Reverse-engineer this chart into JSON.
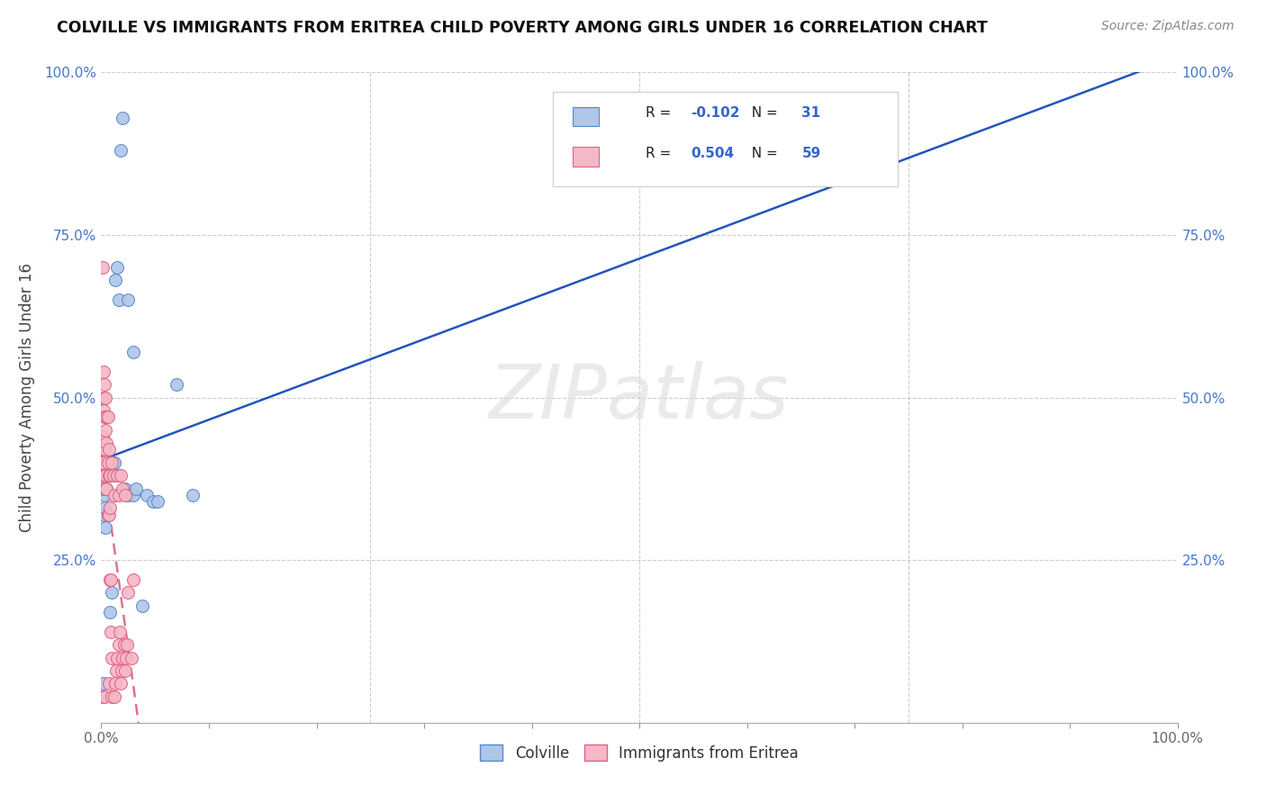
{
  "title": "COLVILLE VS IMMIGRANTS FROM ERITREA CHILD POVERTY AMONG GIRLS UNDER 16 CORRELATION CHART",
  "source": "Source: ZipAtlas.com",
  "ylabel": "Child Poverty Among Girls Under 16",
  "xlim": [
    0,
    1.0
  ],
  "ylim": [
    0,
    1.0
  ],
  "colville_color": "#aec6e8",
  "eritrea_color": "#f4b8c8",
  "colville_edge": "#5588cc",
  "eritrea_edge": "#e06080",
  "trendline_colville_color": "#2255bb",
  "trendline_eritrea_color": "#e07090",
  "R_colville": -0.102,
  "N_colville": 31,
  "R_eritrea": 0.504,
  "N_eritrea": 59,
  "legend_label_colville": "Colville",
  "legend_label_eritrea": "Immigrants from Eritrea",
  "watermark_text": "ZIPatlas",
  "colville_x": [
    0.002,
    0.002,
    0.003,
    0.003,
    0.003,
    0.004,
    0.004,
    0.005,
    0.006,
    0.007,
    0.008,
    0.009,
    0.01,
    0.012,
    0.013,
    0.015,
    0.016,
    0.018,
    0.02,
    0.022,
    0.025,
    0.025,
    0.03,
    0.03,
    0.032,
    0.038,
    0.042,
    0.048,
    0.052,
    0.07,
    0.085
  ],
  "colville_y": [
    0.06,
    0.32,
    0.33,
    0.35,
    0.38,
    0.3,
    0.36,
    0.36,
    0.38,
    0.38,
    0.17,
    0.38,
    0.2,
    0.4,
    0.68,
    0.7,
    0.65,
    0.88,
    0.93,
    0.36,
    0.35,
    0.65,
    0.57,
    0.35,
    0.36,
    0.18,
    0.35,
    0.34,
    0.34,
    0.52,
    0.35
  ],
  "eritrea_x": [
    0.001,
    0.001,
    0.001,
    0.001,
    0.001,
    0.001,
    0.002,
    0.002,
    0.002,
    0.002,
    0.003,
    0.003,
    0.003,
    0.003,
    0.003,
    0.004,
    0.004,
    0.004,
    0.005,
    0.005,
    0.005,
    0.006,
    0.006,
    0.006,
    0.007,
    0.007,
    0.007,
    0.007,
    0.008,
    0.008,
    0.008,
    0.009,
    0.009,
    0.01,
    0.01,
    0.01,
    0.011,
    0.012,
    0.012,
    0.013,
    0.014,
    0.015,
    0.015,
    0.016,
    0.016,
    0.017,
    0.018,
    0.018,
    0.019,
    0.02,
    0.02,
    0.021,
    0.022,
    0.022,
    0.023,
    0.024,
    0.025,
    0.028,
    0.03
  ],
  "eritrea_y": [
    0.7,
    0.5,
    0.44,
    0.4,
    0.36,
    0.04,
    0.54,
    0.48,
    0.42,
    0.38,
    0.52,
    0.47,
    0.42,
    0.36,
    0.04,
    0.5,
    0.45,
    0.38,
    0.47,
    0.43,
    0.36,
    0.47,
    0.4,
    0.32,
    0.42,
    0.38,
    0.32,
    0.06,
    0.38,
    0.33,
    0.22,
    0.22,
    0.14,
    0.4,
    0.1,
    0.04,
    0.38,
    0.35,
    0.04,
    0.06,
    0.08,
    0.38,
    0.1,
    0.35,
    0.12,
    0.14,
    0.38,
    0.06,
    0.08,
    0.36,
    0.1,
    0.12,
    0.35,
    0.08,
    0.1,
    0.12,
    0.2,
    0.1,
    0.22
  ]
}
